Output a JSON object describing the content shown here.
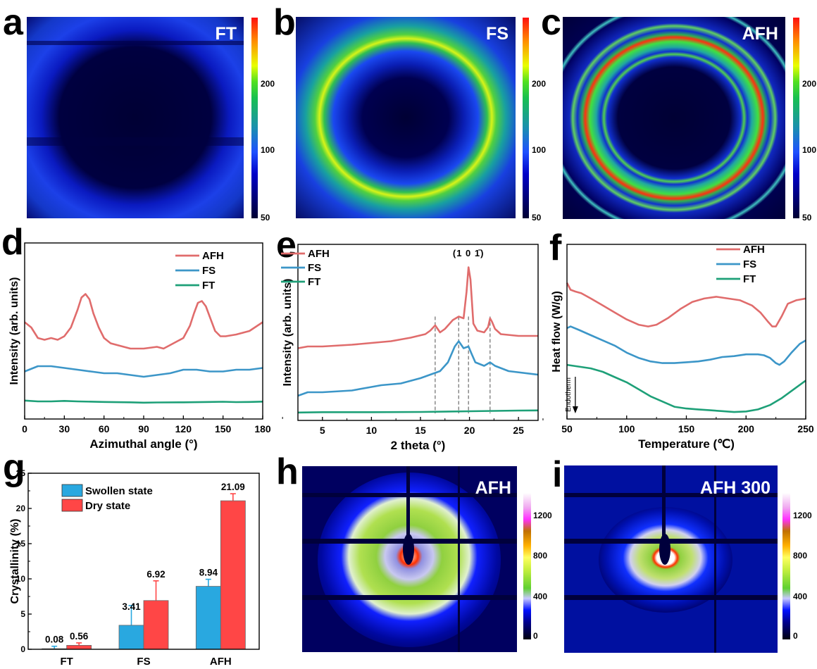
{
  "panel_labels": [
    "a",
    "b",
    "c",
    "d",
    "e",
    "f",
    "g",
    "h",
    "i"
  ],
  "chart_data": [
    {
      "id": "a",
      "type": "heatmap",
      "title": "FT",
      "description": "2D WAXS pattern, weak diffuse halo, dark center",
      "colorbar": {
        "ticks": [
          "50",
          "100",
          "200"
        ],
        "range": [
          50,
          250
        ],
        "colormap": "jet"
      }
    },
    {
      "id": "b",
      "type": "heatmap",
      "title": "FS",
      "description": "2D WAXS pattern, bright isotropic ring",
      "colorbar": {
        "ticks": [
          "50",
          "100",
          "200"
        ],
        "range": [
          50,
          250
        ],
        "colormap": "jet"
      }
    },
    {
      "id": "c",
      "type": "heatmap",
      "title": "AFH",
      "description": "2D WAXS pattern, multiple sharp rings with arcs of higher intensity",
      "colorbar": {
        "ticks": [
          "50",
          "100",
          "200"
        ],
        "range": [
          50,
          250
        ],
        "colormap": "jet"
      }
    },
    {
      "id": "d",
      "type": "line",
      "xlabel": "Azimuthal angle (°)",
      "ylabel": "Intensity (arb. units)",
      "xlim": [
        0,
        180
      ],
      "ylim": [
        0,
        1
      ],
      "xticks": [
        "0",
        "30",
        "60",
        "90",
        "120",
        "150",
        "180"
      ],
      "legend": {
        "placement": "top-right",
        "entries": [
          "AFH",
          "FS",
          "FT"
        ]
      },
      "series": [
        {
          "name": "AFH",
          "color": "#e06c6c",
          "x": [
            0,
            5,
            10,
            15,
            20,
            25,
            30,
            35,
            40,
            43,
            46,
            49,
            52,
            56,
            60,
            65,
            70,
            80,
            90,
            100,
            105,
            110,
            115,
            120,
            125,
            128,
            131,
            134,
            137,
            140,
            144,
            148,
            152,
            160,
            170,
            180
          ],
          "y": [
            0.55,
            0.52,
            0.46,
            0.45,
            0.46,
            0.45,
            0.47,
            0.52,
            0.62,
            0.69,
            0.71,
            0.68,
            0.6,
            0.52,
            0.46,
            0.43,
            0.42,
            0.4,
            0.4,
            0.41,
            0.4,
            0.42,
            0.44,
            0.46,
            0.53,
            0.6,
            0.66,
            0.67,
            0.64,
            0.58,
            0.5,
            0.47,
            0.47,
            0.48,
            0.5,
            0.55
          ]
        },
        {
          "name": "FS",
          "color": "#3c96c8",
          "x": [
            0,
            10,
            20,
            30,
            40,
            50,
            60,
            70,
            80,
            90,
            100,
            110,
            120,
            130,
            140,
            150,
            160,
            170,
            180
          ],
          "y": [
            0.27,
            0.3,
            0.3,
            0.29,
            0.28,
            0.27,
            0.26,
            0.26,
            0.25,
            0.24,
            0.25,
            0.26,
            0.28,
            0.28,
            0.27,
            0.27,
            0.28,
            0.28,
            0.29
          ]
        },
        {
          "name": "FT",
          "color": "#1ea078",
          "x": [
            0,
            10,
            20,
            30,
            40,
            60,
            80,
            90,
            100,
            120,
            140,
            150,
            160,
            170,
            180
          ],
          "y": [
            0.105,
            0.1,
            0.1,
            0.103,
            0.1,
            0.097,
            0.095,
            0.093,
            0.094,
            0.095,
            0.097,
            0.098,
            0.096,
            0.097,
            0.099
          ]
        }
      ]
    },
    {
      "id": "e",
      "type": "line",
      "xlabel": "2 theta (°)",
      "ylabel": "Intensity (arb. units)",
      "xlim": [
        2.5,
        27
      ],
      "ylim": [
        0,
        1
      ],
      "xticks": [
        "5",
        "10",
        "15",
        "20",
        "25"
      ],
      "annotations": [
        {
          "text": "(1 0 1̄)",
          "x": 19.9
        }
      ],
      "reference_lines_x": [
        16.5,
        18.9,
        19.9,
        22.1
      ],
      "legend": {
        "placement": "top-left",
        "entries": [
          "AFH",
          "FS",
          "FT"
        ]
      },
      "series": [
        {
          "name": "AFH",
          "color": "#e06c6c",
          "x": [
            2.5,
            3.5,
            5,
            8,
            10,
            12,
            14,
            15.5,
            16.0,
            16.5,
            17.0,
            17.5,
            18.3,
            18.9,
            19.4,
            19.7,
            19.9,
            20.1,
            20.4,
            20.8,
            21.5,
            21.9,
            22.1,
            22.3,
            22.6,
            23.2,
            25,
            27
          ],
          "y": [
            0.41,
            0.42,
            0.42,
            0.43,
            0.44,
            0.45,
            0.47,
            0.49,
            0.51,
            0.54,
            0.5,
            0.52,
            0.57,
            0.59,
            0.58,
            0.73,
            0.87,
            0.8,
            0.55,
            0.51,
            0.5,
            0.53,
            0.58,
            0.56,
            0.52,
            0.49,
            0.48,
            0.48
          ]
        },
        {
          "name": "FS",
          "color": "#3c96c8",
          "x": [
            2.5,
            3.5,
            5,
            8,
            10,
            11,
            13,
            15,
            16,
            16.5,
            17,
            17.8,
            18.5,
            18.9,
            19.4,
            19.9,
            20.2,
            20.6,
            21.5,
            22.1,
            22.6,
            24,
            27
          ],
          "y": [
            0.14,
            0.16,
            0.16,
            0.17,
            0.19,
            0.2,
            0.21,
            0.24,
            0.26,
            0.27,
            0.28,
            0.33,
            0.42,
            0.45,
            0.41,
            0.42,
            0.38,
            0.33,
            0.31,
            0.33,
            0.31,
            0.28,
            0.26
          ]
        },
        {
          "name": "FT",
          "color": "#1ea078",
          "x": [
            2.5,
            5,
            10,
            15,
            20,
            25,
            27
          ],
          "y": [
            0.045,
            0.047,
            0.047,
            0.048,
            0.052,
            0.056,
            0.057
          ]
        }
      ]
    },
    {
      "id": "f",
      "type": "line",
      "xlabel": "Temperature (℃)",
      "ylabel": "Heat flow (W/g)",
      "xlim": [
        50,
        250
      ],
      "ylim": [
        0,
        1
      ],
      "xticks": [
        "50",
        "100",
        "150",
        "200",
        "250"
      ],
      "annotations": [
        {
          "text": "Endotherm",
          "arrow": "down"
        }
      ],
      "legend": {
        "placement": "top-right",
        "entries": [
          "AFH",
          "FS",
          "FT"
        ]
      },
      "series": [
        {
          "name": "AFH",
          "color": "#e06c6c",
          "x": [
            50,
            53,
            57,
            62,
            70,
            80,
            90,
            100,
            110,
            118,
            125,
            135,
            145,
            155,
            165,
            175,
            185,
            195,
            205,
            212,
            218,
            222,
            225,
            230,
            235,
            242,
            250
          ],
          "y": [
            0.78,
            0.74,
            0.73,
            0.72,
            0.69,
            0.65,
            0.61,
            0.57,
            0.54,
            0.53,
            0.54,
            0.58,
            0.63,
            0.67,
            0.69,
            0.7,
            0.69,
            0.68,
            0.65,
            0.61,
            0.56,
            0.53,
            0.53,
            0.59,
            0.66,
            0.68,
            0.69
          ]
        },
        {
          "name": "FS",
          "color": "#3c96c8",
          "x": [
            50,
            53,
            60,
            70,
            80,
            90,
            100,
            110,
            120,
            130,
            140,
            150,
            160,
            170,
            180,
            190,
            200,
            210,
            215,
            220,
            225,
            228,
            232,
            238,
            245,
            250
          ],
          "y": [
            0.52,
            0.53,
            0.51,
            0.48,
            0.45,
            0.42,
            0.38,
            0.35,
            0.33,
            0.32,
            0.32,
            0.325,
            0.33,
            0.34,
            0.355,
            0.36,
            0.37,
            0.37,
            0.365,
            0.35,
            0.32,
            0.31,
            0.33,
            0.38,
            0.43,
            0.45
          ]
        },
        {
          "name": "FT",
          "color": "#1ea078",
          "x": [
            50,
            60,
            70,
            80,
            90,
            100,
            110,
            120,
            130,
            140,
            150,
            160,
            170,
            180,
            190,
            200,
            210,
            220,
            225,
            230,
            240,
            250
          ],
          "y": [
            0.31,
            0.3,
            0.29,
            0.27,
            0.24,
            0.21,
            0.17,
            0.13,
            0.1,
            0.07,
            0.06,
            0.055,
            0.05,
            0.045,
            0.04,
            0.043,
            0.055,
            0.08,
            0.1,
            0.12,
            0.17,
            0.22
          ]
        }
      ]
    },
    {
      "id": "g",
      "type": "bar",
      "ylabel": "Crystallinity (%)",
      "ylim": [
        0,
        25
      ],
      "yticks": [
        "0",
        "5",
        "10",
        "15",
        "20",
        "25"
      ],
      "categories": [
        "FT",
        "FS",
        "AFH"
      ],
      "legend": {
        "placement": "top-left",
        "entries": [
          "Swollen state",
          "Dry state"
        ]
      },
      "series": [
        {
          "name": "Swollen state",
          "color": "#29a8e0",
          "values": [
            0.08,
            3.41,
            8.94
          ],
          "errors": [
            0.35,
            2.8,
            1.0
          ],
          "labels": [
            "0.08",
            "3.41",
            "8.94"
          ]
        },
        {
          "name": "Dry state",
          "color": "#ff4646",
          "values": [
            0.56,
            6.92,
            21.09
          ],
          "errors": [
            0.35,
            2.8,
            1.0
          ],
          "labels": [
            "0.56",
            "6.92",
            "21.09"
          ]
        }
      ]
    },
    {
      "id": "h",
      "type": "heatmap",
      "title": "AFH",
      "description": "2D SAXS pattern, isotropic ring with equatorial lobes, beamstop and detector gaps",
      "colorbar": {
        "ticks": [
          "0",
          "400",
          "800",
          "1200"
        ],
        "range": [
          0,
          1400
        ],
        "colormap": "saxs"
      }
    },
    {
      "id": "i",
      "type": "heatmap",
      "title": "AFH 300",
      "description": "2D SAXS pattern, anisotropic butterfly scattering, beamstop and detector gaps",
      "colorbar": {
        "ticks": [
          "0",
          "400",
          "800",
          "1200"
        ],
        "range": [
          0,
          1400
        ],
        "colormap": "saxs"
      }
    }
  ]
}
